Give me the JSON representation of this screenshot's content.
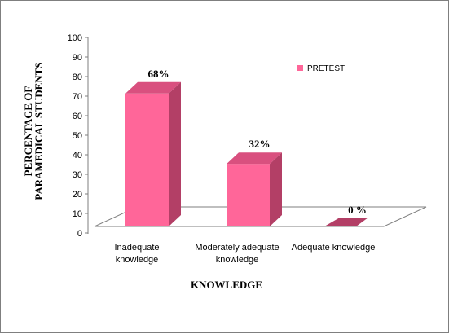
{
  "chart_data": {
    "type": "bar",
    "categories": [
      "Inadequate knowledge",
      "Moderately adequate knowledge",
      "Adequate knowledge"
    ],
    "category_lines": [
      [
        "Inadequate",
        "knowledge"
      ],
      [
        "Moderately adequate",
        "knowledge"
      ],
      [
        "Adequate knowledge"
      ]
    ],
    "series": [
      {
        "name": "PRETEST",
        "values": [
          68,
          32,
          0
        ]
      }
    ],
    "data_labels": [
      "68%",
      "32%",
      "0 %"
    ],
    "xlabel": "KNOWLEDGE",
    "ylabel_lines": [
      "PERCENTAGE OF",
      "PARAMEDICAL STUDENTS"
    ],
    "ylim": [
      0,
      100
    ],
    "yticks": [
      0,
      10,
      20,
      30,
      40,
      50,
      60,
      70,
      80,
      90,
      100
    ],
    "grid": false,
    "legend_position": "right",
    "colors": {
      "bar_front": "#FF6699",
      "bar_side": "#B33F66",
      "bar_top": "#D9507F"
    }
  }
}
